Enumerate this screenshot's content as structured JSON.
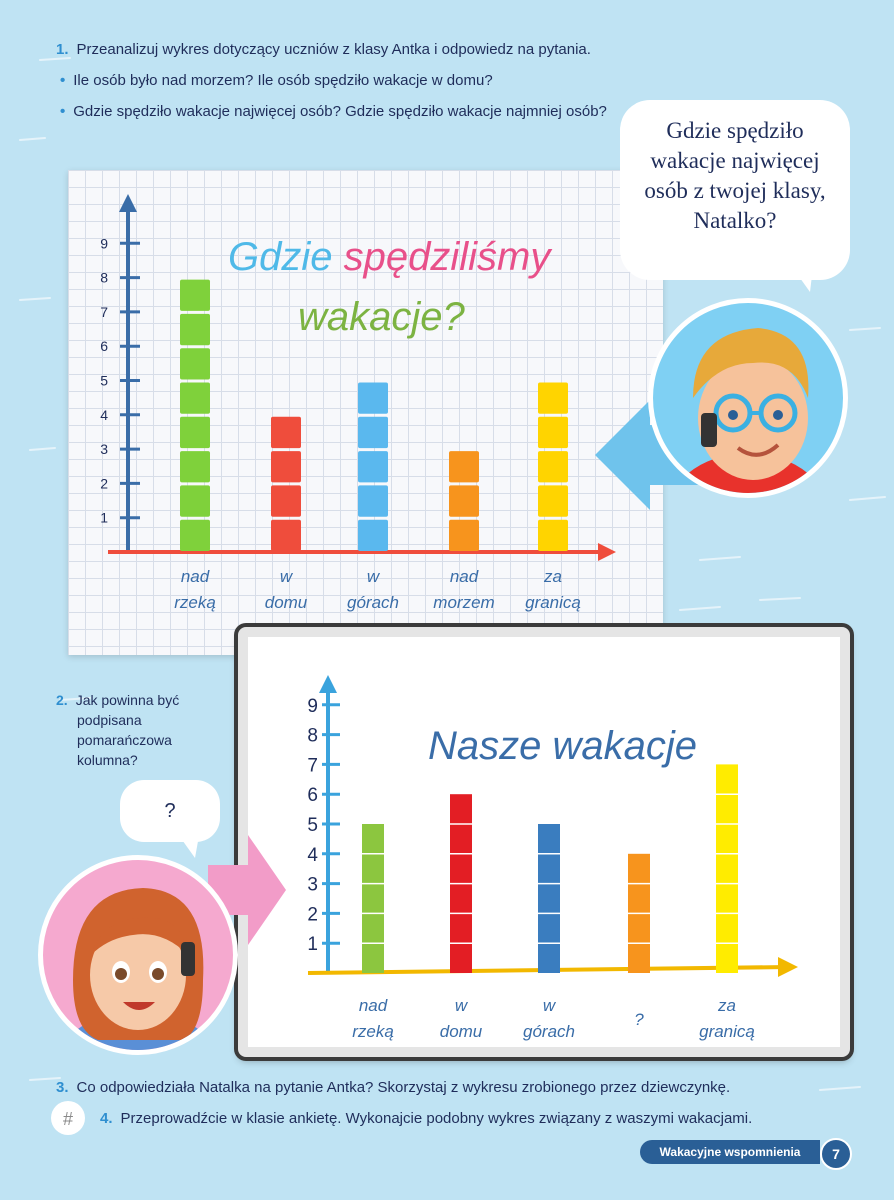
{
  "tasks": {
    "t1": {
      "num": "1.",
      "text": "Przeanalizuj wykres dotyczący uczniów z klasy Antka i odpowiedz na pytania."
    },
    "b1": "Ile osób było nad morzem? Ile osób spędziło wakacje w domu?",
    "b2": "Gdzie spędziło wakacje najwięcej osób? Gdzie spędziło wakacje najmniej osób?",
    "t2": {
      "num": "2.",
      "lines": [
        "Jak powinna być",
        "podpisana",
        "pomarańczowa",
        "kolumna?"
      ]
    },
    "t3": {
      "num": "3.",
      "text": "Co odpowiedziała Natalka na pytanie Antka? Skorzystaj z wykresu zrobionego przez dziewczynkę."
    },
    "t4": {
      "num": "4.",
      "text": "Przeprowadźcie w klasie ankietę. Wykonajcie podobny wykres związany z waszymi wakacjami."
    }
  },
  "speech": {
    "boy_lines": [
      "Gdzie spędziło",
      "wakacje najwięcej",
      "osób z twojej klasy,",
      "Natalko?"
    ],
    "girl": "?"
  },
  "footer": {
    "label": "Wakacyjne wspomnienia",
    "page": "7"
  },
  "chart_data": [
    {
      "type": "bar",
      "title_parts": [
        "Gdzie",
        "spędziliśmy",
        "wakacje?"
      ],
      "categories": [
        [
          "nad",
          "rzeką"
        ],
        [
          "w",
          "domu"
        ],
        [
          "w",
          "górach"
        ],
        [
          "nad",
          "morzem"
        ],
        [
          "za",
          "granicą"
        ]
      ],
      "values": [
        8,
        4,
        5,
        3,
        5
      ],
      "colors": [
        "#7fd13b",
        "#ef4d3c",
        "#5ab8ee",
        "#f7941d",
        "#ffd400"
      ],
      "yticks": [
        1,
        2,
        3,
        4,
        5,
        6,
        7,
        8,
        9
      ],
      "ylim": [
        0,
        9
      ]
    },
    {
      "type": "bar",
      "title": "Nasze wakacje",
      "categories": [
        [
          "nad",
          "rzeką"
        ],
        [
          "w",
          "domu"
        ],
        [
          "w",
          "górach"
        ],
        [
          "?"
        ],
        [
          "za",
          "granicą"
        ]
      ],
      "values": [
        5,
        6,
        5,
        4,
        7
      ],
      "colors": [
        "#8cc63f",
        "#e31e24",
        "#3a7dbf",
        "#f7941d",
        "#ffec00"
      ],
      "yticks": [
        1,
        2,
        3,
        4,
        5,
        6,
        7,
        8,
        9
      ],
      "ylim": [
        0,
        9
      ]
    }
  ]
}
